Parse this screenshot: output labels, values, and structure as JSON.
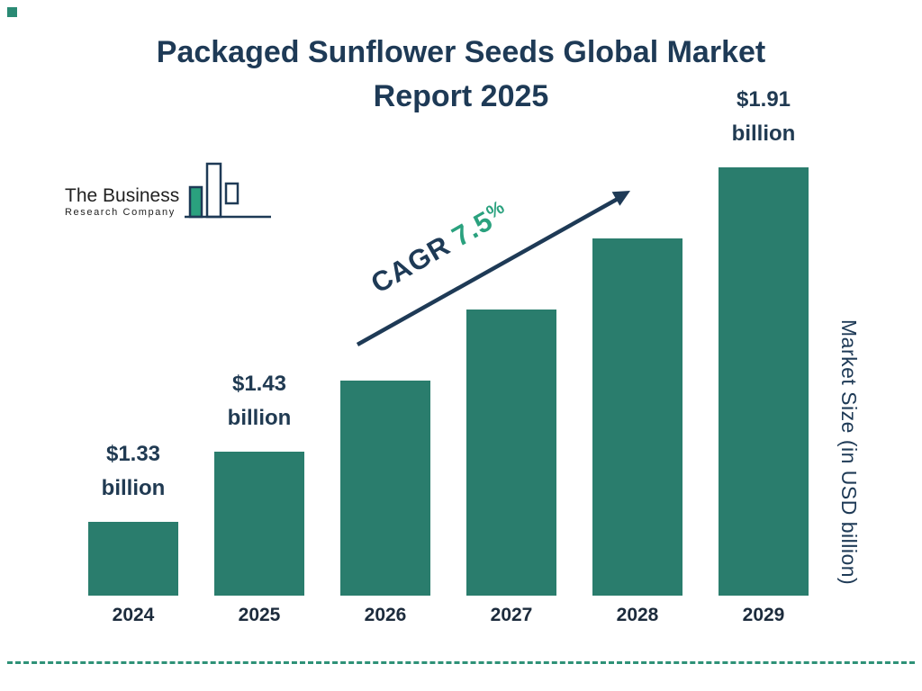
{
  "title": {
    "line1": "Packaged Sunflower Seeds Global Market",
    "line2": "Report 2025"
  },
  "logo": {
    "line1": "The Business",
    "line2": "Research Company"
  },
  "cagr": {
    "prefix": "CAGR",
    "value": "7.5",
    "percent": "%"
  },
  "y_axis_label": "Market Size (in USD billion)",
  "chart_data": {
    "type": "bar",
    "title": "Packaged Sunflower Seeds Global Market Report 2025",
    "categories": [
      "2024",
      "2025",
      "2026",
      "2027",
      "2028",
      "2029"
    ],
    "values": [
      1.33,
      1.43,
      1.54,
      1.65,
      1.78,
      1.91
    ],
    "ylabel": "Market Size (in USD billion)",
    "cagr_label": "CAGR 7.5%",
    "bar_color": "#2a7d6d",
    "legend": "none",
    "grid": false,
    "value_labels": [
      {
        "index": 0,
        "text": "$1.33 billion"
      },
      {
        "index": 1,
        "text": "$1.43 billion"
      },
      {
        "index": 5,
        "text": "$1.91 billion"
      }
    ]
  }
}
